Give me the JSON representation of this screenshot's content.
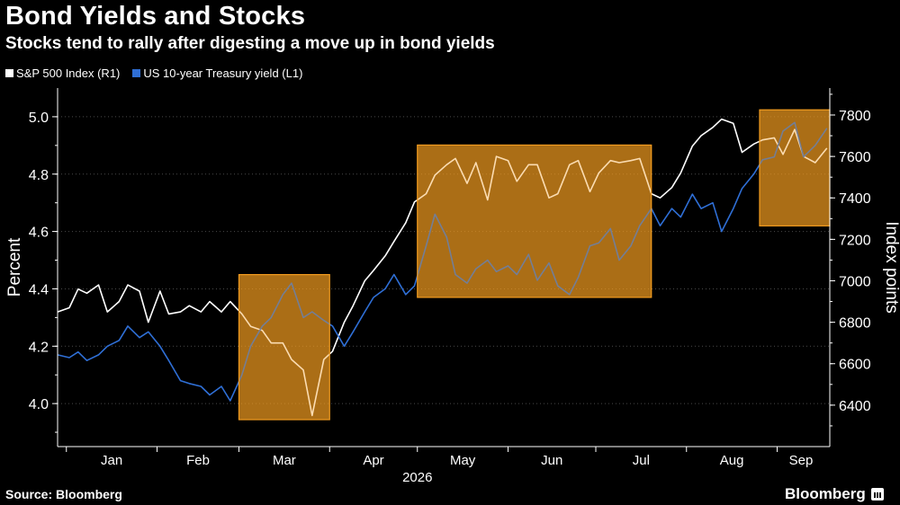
{
  "header": {
    "title": "Bond Yields and Stocks",
    "subtitle": "Stocks tend to rally after digesting a move up in bond yields"
  },
  "footer": {
    "source": "Source: Bloomberg",
    "brand": "Bloomberg"
  },
  "colors": {
    "background": "#000000",
    "sp500": "#ffffff",
    "treasury": "#2f6fd6",
    "highlight_fill": "#f39c1f",
    "highlight_stroke": "#f39c1f",
    "axis": "#ffffff",
    "grid": "#4a4a4a"
  },
  "icons": [
    "bloomberg-logo-icon"
  ],
  "chart_data": {
    "type": "line",
    "xlabel": "2026",
    "months": [
      "Jan",
      "Feb",
      "Mar",
      "Apr",
      "May",
      "Jun",
      "Jul",
      "Aug",
      "Sep"
    ],
    "x_range": [
      "2025-12-29",
      "2026-09-19"
    ],
    "grid": "horizontal, dotted",
    "legend_position": "top-left",
    "left_axis": {
      "label": "Percent",
      "ylim": [
        3.85,
        5.1
      ],
      "ticks": [
        4.0,
        4.2,
        4.4,
        4.6,
        4.8,
        5.0
      ],
      "tick_labels": [
        "4.0",
        "4.2",
        "4.4",
        "4.6",
        "4.8",
        "5.0"
      ]
    },
    "right_axis": {
      "label": "Index points",
      "ylim": [
        6200,
        7930
      ],
      "ticks": [
        6400,
        6600,
        6800,
        7000,
        7200,
        7400,
        7600,
        7800
      ],
      "tick_labels": [
        "6400",
        "6600",
        "6800",
        "7000",
        "7200",
        "7400",
        "7600",
        "7800"
      ]
    },
    "highlights": [
      {
        "start": "2026-03-01",
        "end": "2026-04-01",
        "y_right": [
          6330,
          7030
        ]
      },
      {
        "start": "2026-05-01",
        "end": "2026-07-20",
        "y_right": [
          6920,
          7655
        ]
      },
      {
        "start": "2026-08-26",
        "end": "2026-09-19",
        "y_right": [
          7265,
          7825
        ]
      }
    ],
    "series": [
      {
        "name": "S&P 500 Index (R1)",
        "axis": "right",
        "dates": [
          "2025-12-29",
          "2026-01-02",
          "2026-01-05",
          "2026-01-08",
          "2026-01-12",
          "2026-01-15",
          "2026-01-19",
          "2026-01-22",
          "2026-01-26",
          "2026-01-29",
          "2026-02-02",
          "2026-02-05",
          "2026-02-09",
          "2026-02-12",
          "2026-02-16",
          "2026-02-19",
          "2026-02-23",
          "2026-02-26",
          "2026-03-02",
          "2026-03-05",
          "2026-03-09",
          "2026-03-12",
          "2026-03-16",
          "2026-03-19",
          "2026-03-23",
          "2026-03-26",
          "2026-03-30",
          "2026-04-02",
          "2026-04-06",
          "2026-04-09",
          "2026-04-13",
          "2026-04-16",
          "2026-04-20",
          "2026-04-23",
          "2026-04-27",
          "2026-04-30",
          "2026-05-04",
          "2026-05-07",
          "2026-05-11",
          "2026-05-14",
          "2026-05-18",
          "2026-05-21",
          "2026-05-25",
          "2026-05-28",
          "2026-06-01",
          "2026-06-04",
          "2026-06-08",
          "2026-06-11",
          "2026-06-15",
          "2026-06-18",
          "2026-06-22",
          "2026-06-25",
          "2026-06-29",
          "2026-07-02",
          "2026-07-06",
          "2026-07-09",
          "2026-07-13",
          "2026-07-16",
          "2026-07-20",
          "2026-07-23",
          "2026-07-27",
          "2026-07-30",
          "2026-08-03",
          "2026-08-06",
          "2026-08-10",
          "2026-08-13",
          "2026-08-17",
          "2026-08-20",
          "2026-08-24",
          "2026-08-27",
          "2026-08-31",
          "2026-09-03",
          "2026-09-07",
          "2026-09-10",
          "2026-09-14",
          "2026-09-18"
        ],
        "values": [
          6850,
          6870,
          6960,
          6940,
          6980,
          6850,
          6900,
          6980,
          6950,
          6800,
          6950,
          6840,
          6850,
          6880,
          6850,
          6900,
          6850,
          6900,
          6840,
          6780,
          6760,
          6700,
          6700,
          6620,
          6570,
          6350,
          6620,
          6660,
          6800,
          6880,
          7000,
          7050,
          7120,
          7190,
          7280,
          7380,
          7420,
          7510,
          7560,
          7590,
          7470,
          7570,
          7390,
          7600,
          7580,
          7480,
          7560,
          7560,
          7400,
          7420,
          7560,
          7580,
          7430,
          7520,
          7580,
          7570,
          7580,
          7590,
          7420,
          7400,
          7450,
          7520,
          7650,
          7700,
          7740,
          7780,
          7760,
          7620,
          7660,
          7680,
          7690,
          7610,
          7730,
          7600,
          7570,
          7640
        ]
      },
      {
        "name": "US 10-year Treasury yield (L1)",
        "axis": "left",
        "dates": [
          "2025-12-29",
          "2026-01-02",
          "2026-01-05",
          "2026-01-08",
          "2026-01-12",
          "2026-01-15",
          "2026-01-19",
          "2026-01-22",
          "2026-01-26",
          "2026-01-29",
          "2026-02-02",
          "2026-02-05",
          "2026-02-09",
          "2026-02-12",
          "2026-02-16",
          "2026-02-19",
          "2026-02-23",
          "2026-02-26",
          "2026-03-02",
          "2026-03-05",
          "2026-03-09",
          "2026-03-12",
          "2026-03-16",
          "2026-03-19",
          "2026-03-23",
          "2026-03-26",
          "2026-03-30",
          "2026-04-02",
          "2026-04-06",
          "2026-04-09",
          "2026-04-13",
          "2026-04-16",
          "2026-04-20",
          "2026-04-23",
          "2026-04-27",
          "2026-04-30",
          "2026-05-04",
          "2026-05-07",
          "2026-05-11",
          "2026-05-14",
          "2026-05-18",
          "2026-05-21",
          "2026-05-25",
          "2026-05-28",
          "2026-06-01",
          "2026-06-04",
          "2026-06-08",
          "2026-06-11",
          "2026-06-15",
          "2026-06-18",
          "2026-06-22",
          "2026-06-25",
          "2026-06-29",
          "2026-07-02",
          "2026-07-06",
          "2026-07-09",
          "2026-07-13",
          "2026-07-16",
          "2026-07-20",
          "2026-07-23",
          "2026-07-27",
          "2026-07-30",
          "2026-08-03",
          "2026-08-06",
          "2026-08-10",
          "2026-08-13",
          "2026-08-17",
          "2026-08-20",
          "2026-08-24",
          "2026-08-27",
          "2026-08-31",
          "2026-09-03",
          "2026-09-07",
          "2026-09-10",
          "2026-09-14",
          "2026-09-18"
        ],
        "values": [
          4.17,
          4.16,
          4.18,
          4.15,
          4.17,
          4.2,
          4.22,
          4.27,
          4.23,
          4.25,
          4.2,
          4.15,
          4.08,
          4.07,
          4.06,
          4.03,
          4.06,
          4.01,
          4.1,
          4.2,
          4.27,
          4.3,
          4.38,
          4.42,
          4.3,
          4.32,
          4.29,
          4.27,
          4.2,
          4.25,
          4.32,
          4.37,
          4.4,
          4.45,
          4.38,
          4.41,
          4.55,
          4.66,
          4.58,
          4.45,
          4.42,
          4.47,
          4.5,
          4.46,
          4.48,
          4.45,
          4.52,
          4.43,
          4.49,
          4.41,
          4.38,
          4.44,
          4.55,
          4.56,
          4.61,
          4.5,
          4.55,
          4.62,
          4.68,
          4.62,
          4.68,
          4.65,
          4.73,
          4.68,
          4.7,
          4.6,
          4.68,
          4.75,
          4.8,
          4.85,
          4.86,
          4.95,
          4.98,
          4.86,
          4.9,
          4.96
        ]
      }
    ]
  }
}
